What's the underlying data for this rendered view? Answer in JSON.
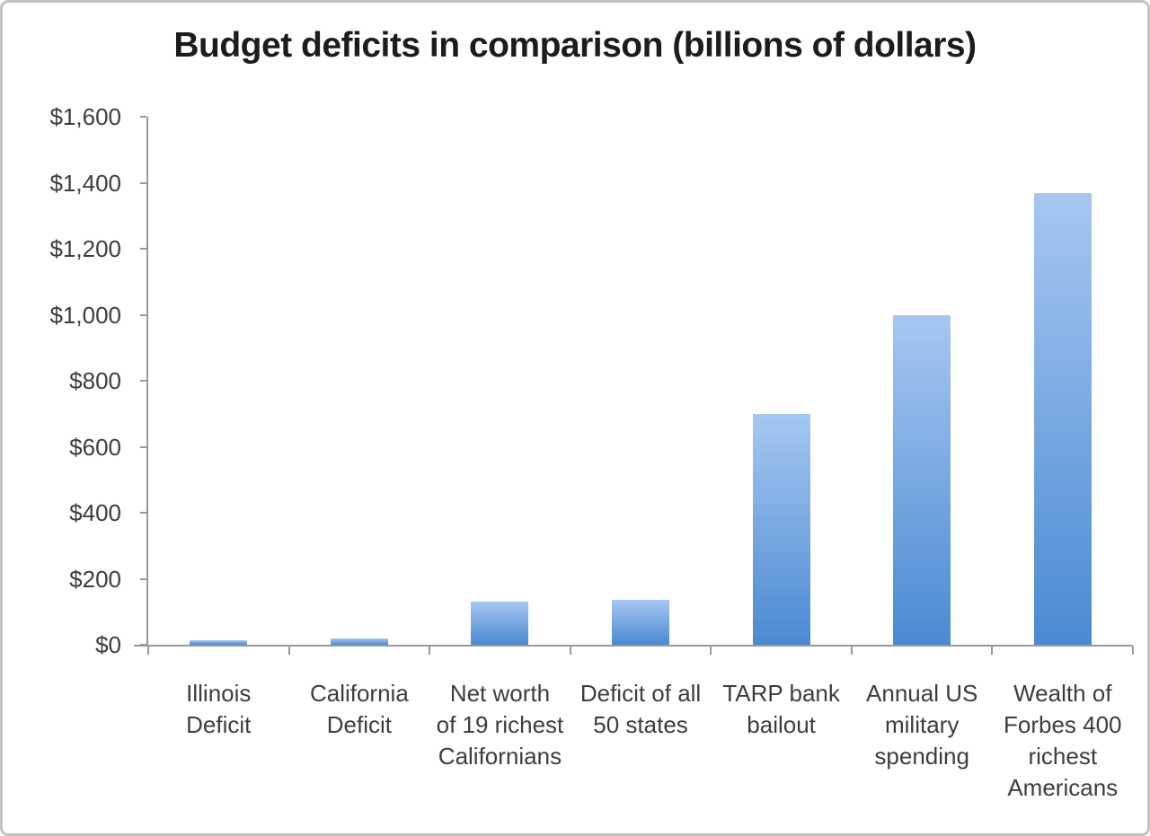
{
  "chart_data": {
    "type": "bar",
    "title": "Budget deficits in comparison (billions of dollars)",
    "unit": "billions of dollars",
    "categories": [
      "Illinois Deficit",
      "California Deficit",
      "Net worth of 19 richest Californians",
      "Deficit of all 50 states",
      "TARP bank bailout",
      "Annual US military spending",
      "Wealth of Forbes 400 richest Americans"
    ],
    "category_label_lines": [
      [
        "Illinois",
        "Deficit"
      ],
      [
        "California",
        "Deficit"
      ],
      [
        "Net worth",
        "of 19 richest",
        "Californians"
      ],
      [
        "Deficit of all",
        "50 states"
      ],
      [
        "TARP bank",
        "bailout"
      ],
      [
        "Annual US",
        "military",
        "spending"
      ],
      [
        "Wealth of",
        "Forbes 400",
        "richest",
        "Americans"
      ]
    ],
    "values": [
      13,
      20,
      130,
      135,
      700,
      1000,
      1370
    ],
    "ylim": [
      0,
      1600
    ],
    "ytick_step": 200,
    "ytick_labels_top_to_bottom": [
      "$1,600",
      "$1,400",
      "$1,200",
      "$1,000",
      "$800",
      "$600",
      "$400",
      "$200",
      "$0"
    ],
    "grid": false,
    "legend": "none",
    "colors": {
      "bar_gradient_top": "#a6c7f1",
      "bar_gradient_bottom": "#4a8ad2",
      "axis": "#999999",
      "tick_label": "#3d3d3d",
      "title": "#1c1c1c",
      "frame_border": "#c2c2c2",
      "background": "#ffffff"
    }
  }
}
